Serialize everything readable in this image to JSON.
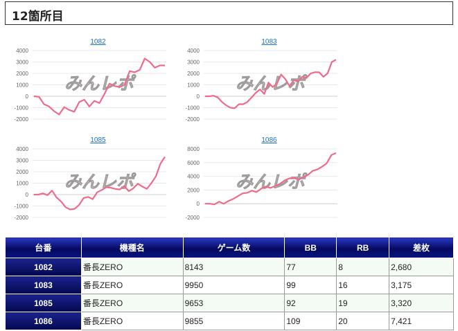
{
  "header": {
    "title": "12箇所目"
  },
  "watermark": "みんレポ",
  "colors": {
    "line": "#f06b8b",
    "link": "#1a6fc9",
    "table_header_dark": "#050a5e"
  },
  "chart_data": [
    {
      "type": "line",
      "title": "1082",
      "ylim": [
        -2000,
        4000
      ],
      "yticks": [
        -2000,
        -1000,
        0,
        1000,
        2000,
        3000,
        4000
      ],
      "series": [
        {
          "values": [
            0,
            -50,
            -700,
            -900,
            -1300,
            -1600,
            -950,
            -1200,
            -1350,
            -500,
            -300,
            -900,
            -400,
            -600,
            200,
            1100,
            900,
            800,
            1000,
            2200,
            2100,
            2300,
            3300,
            3000,
            2500,
            2700,
            2700
          ]
        }
      ]
    },
    {
      "type": "line",
      "title": "1083",
      "ylim": [
        -2000,
        4000
      ],
      "yticks": [
        -2000,
        -1000,
        0,
        1000,
        2000,
        3000,
        4000
      ],
      "series": [
        {
          "values": [
            0,
            0,
            50,
            -100,
            -500,
            -800,
            -1000,
            -1050,
            -700,
            -700,
            -500,
            -100,
            300,
            600,
            200,
            1200,
            800,
            1100,
            1900,
            1500,
            900,
            1400,
            1300,
            1700,
            1600,
            2000,
            2100,
            2100,
            1700,
            2000,
            3000,
            3200
          ]
        }
      ]
    },
    {
      "type": "line",
      "title": "1085",
      "ylim": [
        -2000,
        4000
      ],
      "yticks": [
        -2000,
        -1000,
        0,
        1000,
        2000,
        3000,
        4000
      ],
      "series": [
        {
          "values": [
            0,
            0,
            100,
            -50,
            350,
            -250,
            -600,
            -1100,
            -1300,
            -1250,
            -900,
            -300,
            -200,
            -400,
            200,
            400,
            650,
            600,
            500,
            450,
            750,
            300,
            550,
            950,
            700,
            500,
            1000,
            1600,
            2700,
            3300
          ]
        }
      ]
    },
    {
      "type": "line",
      "title": "1086",
      "ylim": [
        -2000,
        8000
      ],
      "yticks": [
        -2000,
        0,
        2000,
        4000,
        6000,
        8000
      ],
      "series": [
        {
          "values": [
            0,
            0,
            -100,
            300,
            0,
            400,
            700,
            1100,
            1500,
            1600,
            1900,
            1700,
            2200,
            2500,
            2300,
            2600,
            2900,
            3400,
            3700,
            3800,
            3500,
            3900,
            4200,
            4800,
            5000,
            5400,
            5900,
            7100,
            7400
          ]
        }
      ]
    }
  ],
  "table": {
    "headers": [
      "台番",
      "機種名",
      "ゲーム数",
      "BB",
      "RB",
      "差枚"
    ],
    "rows": [
      [
        "1082",
        "番長ZERO",
        "8143",
        "77",
        "8",
        "2,680"
      ],
      [
        "1083",
        "番長ZERO",
        "9950",
        "99",
        "16",
        "3,175"
      ],
      [
        "1085",
        "番長ZERO",
        "9653",
        "92",
        "19",
        "3,320"
      ],
      [
        "1086",
        "番長ZERO",
        "9855",
        "109",
        "20",
        "7,421"
      ]
    ]
  }
}
